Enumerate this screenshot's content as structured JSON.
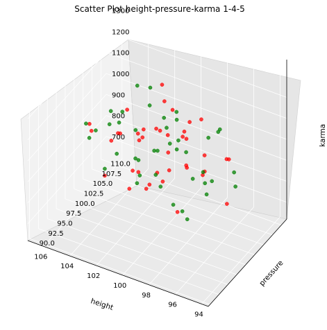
{
  "chart_data": {
    "type": "scatter",
    "title": "Scatter Plot  height-pressure-karma  1-4-5",
    "xlabel": "height",
    "ylabel": "pressure",
    "zlabel": "karma",
    "xlim": [
      93.5,
      107.2
    ],
    "ylim": [
      89.5,
      111.5
    ],
    "zlim": [
      620,
      1380
    ],
    "x_ticks": [
      "94",
      "96",
      "98",
      "100",
      "102",
      "104",
      "106"
    ],
    "y_ticks": [
      "90.0",
      "92.5",
      "95.0",
      "97.5",
      "100.0",
      "102.5",
      "105.0",
      "107.5",
      "110.0"
    ],
    "z_ticks": [
      "700",
      "800",
      "900",
      "1000",
      "1100",
      "1200",
      "1300"
    ],
    "grid": true,
    "legend": "none",
    "series": [
      {
        "color": "#ff0000",
        "sample": [
          [
            99.6,
            100.8,
            1000
          ],
          [
            101.2,
            99.5,
            1060
          ],
          [
            98.4,
            101.6,
            940
          ],
          [
            100.9,
            98.7,
            1120
          ],
          [
            102.1,
            101.9,
            980
          ],
          [
            97.8,
            99.2,
            1010
          ],
          [
            100.1,
            97.4,
            900
          ],
          [
            99.0,
            103.1,
            1070
          ],
          [
            101.7,
            100.2,
            870
          ],
          [
            98.9,
            98.1,
            1150
          ],
          [
            103.0,
            99.9,
            1030
          ],
          [
            96.9,
            100.5,
            960
          ],
          [
            100.4,
            102.7,
            1190
          ],
          [
            99.3,
            96.6,
            990
          ],
          [
            102.6,
            97.8,
            1080
          ],
          [
            97.4,
            102.9,
            920
          ],
          [
            101.4,
            104.1,
            1010
          ],
          [
            98.2,
            95.9,
            1040
          ],
          [
            104.0,
            101.1,
            950
          ],
          [
            96.3,
            98.8,
            1100
          ],
          [
            100.7,
            94.9,
            1000
          ],
          [
            99.8,
            105.6,
            980
          ],
          [
            103.5,
            103.7,
            1060
          ],
          [
            95.6,
            102.4,
            1030
          ],
          [
            102.9,
            95.2,
            920
          ],
          [
            97.0,
            96.3,
            1210
          ],
          [
            105.1,
            99.6,
            1000
          ],
          [
            94.9,
            99.9,
            880
          ],
          [
            101.0,
            107.2,
            1050
          ],
          [
            99.1,
            92.8,
            990
          ],
          [
            100.2,
            101.3,
            1300
          ],
          [
            98.6,
            99.7,
            760
          ],
          [
            101.9,
            98.4,
            820
          ],
          [
            97.9,
            103.8,
            1140
          ],
          [
            104.6,
            97.2,
            1090
          ],
          [
            96.1,
            104.9,
            970
          ],
          [
            100.0,
            100.0,
            1110
          ],
          [
            99.5,
            98.9,
            900
          ],
          [
            102.3,
            102.3,
            1000
          ],
          [
            98.0,
            100.9,
            1180
          ]
        ]
      },
      {
        "color": "#008000",
        "sample": [
          [
            100.3,
            100.4,
            1000
          ],
          [
            99.1,
            101.8,
            1050
          ],
          [
            101.6,
            99.0,
            960
          ],
          [
            98.3,
            98.4,
            1090
          ],
          [
            102.4,
            102.0,
            1020
          ],
          [
            97.6,
            100.3,
            930
          ],
          [
            100.8,
            96.9,
            1010
          ],
          [
            99.7,
            103.5,
            1140
          ],
          [
            101.1,
            97.6,
            880
          ],
          [
            98.7,
            102.5,
            990
          ],
          [
            103.3,
            100.7,
            1060
          ],
          [
            96.6,
            99.5,
            1000
          ],
          [
            100.5,
            104.6,
            950
          ],
          [
            99.2,
            95.4,
            1120
          ],
          [
            102.8,
            98.2,
            970
          ],
          [
            97.2,
            103.2,
            1080
          ],
          [
            104.3,
            101.7,
            1010
          ],
          [
            95.9,
            97.9,
            940
          ],
          [
            101.3,
            105.9,
            1030
          ],
          [
            98.5,
            94.6,
            980
          ],
          [
            103.8,
            96.0,
            1100
          ],
          [
            96.0,
            102.0,
            1170
          ],
          [
            105.4,
            100.1,
            950
          ],
          [
            94.6,
            100.8,
            1020
          ],
          [
            100.9,
            108.0,
            990
          ],
          [
            99.4,
            92.1,
            1060
          ],
          [
            102.0,
            101.0,
            1260
          ],
          [
            98.1,
            100.6,
            720
          ],
          [
            101.8,
            103.9,
            1200
          ],
          [
            97.5,
            97.0,
            840
          ],
          [
            104.9,
            104.3,
            1010
          ],
          [
            95.2,
            96.8,
            1040
          ],
          [
            100.6,
            99.3,
            1230
          ],
          [
            99.0,
            100.0,
            780
          ],
          [
            102.7,
            99.4,
            1150
          ],
          [
            97.0,
            101.5,
            900
          ],
          [
            103.9,
            98.9,
            860
          ],
          [
            96.4,
            103.0,
            1130
          ],
          [
            100.1,
            102.2,
            1080
          ],
          [
            99.6,
            97.3,
            960
          ],
          [
            106.0,
            101.4,
            980
          ],
          [
            93.9,
            98.6,
            1010
          ]
        ]
      }
    ]
  }
}
